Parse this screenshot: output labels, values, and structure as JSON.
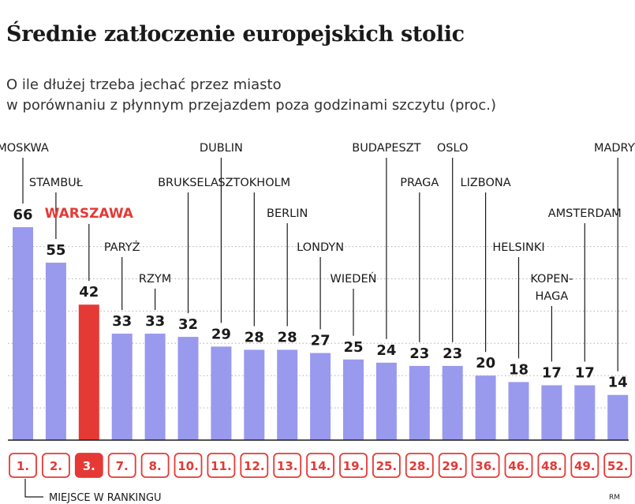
{
  "chart_data": {
    "type": "bar",
    "title": "Średnie zatłoczenie europejskich stolic",
    "subtitle": [
      "O ile dłużej trzeba jechać przez miasto",
      "w porównaniu z płynnym przejazdem poza godzinami szczytu (proc.)"
    ],
    "categories": [
      "MOSKWA",
      "STAMBUŁ",
      "WARSZAWA",
      "PARYŻ",
      "RZYM",
      "BRUKSELA",
      "DUBLIN",
      "SZTOKHOLM",
      "BERLIN",
      "LONDYN",
      "WIEDEŃ",
      "BUDAPESZT",
      "PRAGA",
      "OSLO",
      "LIZBONA",
      "HELSINKI",
      "KOPEN-|HAGA",
      "AMSTERDAM",
      "MADRYT"
    ],
    "values": [
      66,
      55,
      42,
      33,
      33,
      32,
      29,
      28,
      28,
      27,
      25,
      24,
      23,
      23,
      20,
      18,
      17,
      17,
      14
    ],
    "ranks": [
      "1.",
      "2.",
      "3.",
      "7.",
      "8.",
      "10.",
      "11.",
      "12.",
      "13.",
      "14.",
      "19.",
      "25.",
      "28.",
      "29.",
      "36.",
      "46.",
      "48.",
      "49.",
      "52."
    ],
    "highlight": "WARSZAWA",
    "rank_note": "MIEJSCE W RANKINGU",
    "credit": "RM",
    "ylim": [
      0,
      70
    ],
    "grid": true,
    "colors": {
      "bar": "#9999ee",
      "highlight": "#e53935",
      "rank_border": "#e53935",
      "grid": "#b0b0b0"
    }
  }
}
